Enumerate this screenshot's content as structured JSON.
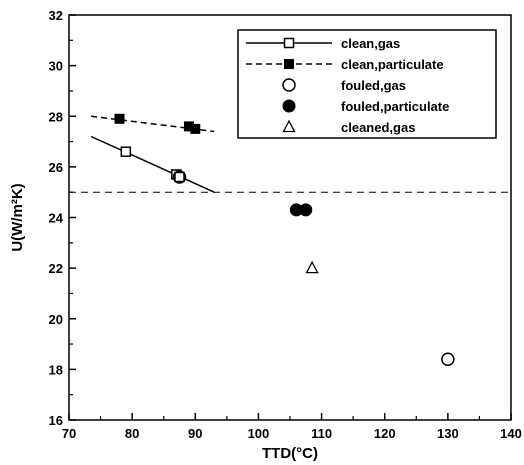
{
  "chart_data": {
    "type": "scatter",
    "xlabel": "TTD(°C)",
    "ylabel": "U(W/m²K)",
    "xlim": [
      70,
      140
    ],
    "ylim": [
      16,
      32
    ],
    "x_ticks": [
      70,
      80,
      90,
      100,
      110,
      120,
      130,
      140
    ],
    "y_ticks": [
      16,
      18,
      20,
      22,
      24,
      26,
      28,
      30,
      32
    ],
    "grid": false,
    "legend_position": "top-right",
    "reference_line": {
      "y": 25
    },
    "series": [
      {
        "name": "clean,gas",
        "marker": "open-square",
        "line": "solid",
        "points": [
          [
            79,
            26.6
          ],
          [
            87,
            25.7
          ],
          [
            87.5,
            25.6
          ]
        ],
        "fit_line": [
          [
            73.5,
            27.2
          ],
          [
            93,
            25.0
          ]
        ]
      },
      {
        "name": "clean,particulate",
        "marker": "filled-square",
        "line": "dashed",
        "points": [
          [
            78,
            27.9
          ],
          [
            89,
            27.6
          ],
          [
            90,
            27.5
          ]
        ],
        "fit_line": [
          [
            73.5,
            28.0
          ],
          [
            93,
            27.4
          ]
        ]
      },
      {
        "name": "fouled,gas",
        "marker": "open-circle",
        "line": "none",
        "points": [
          [
            87.5,
            25.6
          ],
          [
            130,
            18.4
          ]
        ]
      },
      {
        "name": "fouled,particulate",
        "marker": "filled-circle",
        "line": "none",
        "points": [
          [
            106,
            24.3
          ],
          [
            107.5,
            24.3
          ]
        ]
      },
      {
        "name": "cleaned,gas",
        "marker": "open-triangle",
        "line": "none",
        "points": [
          [
            108.5,
            22.0
          ]
        ]
      }
    ]
  }
}
